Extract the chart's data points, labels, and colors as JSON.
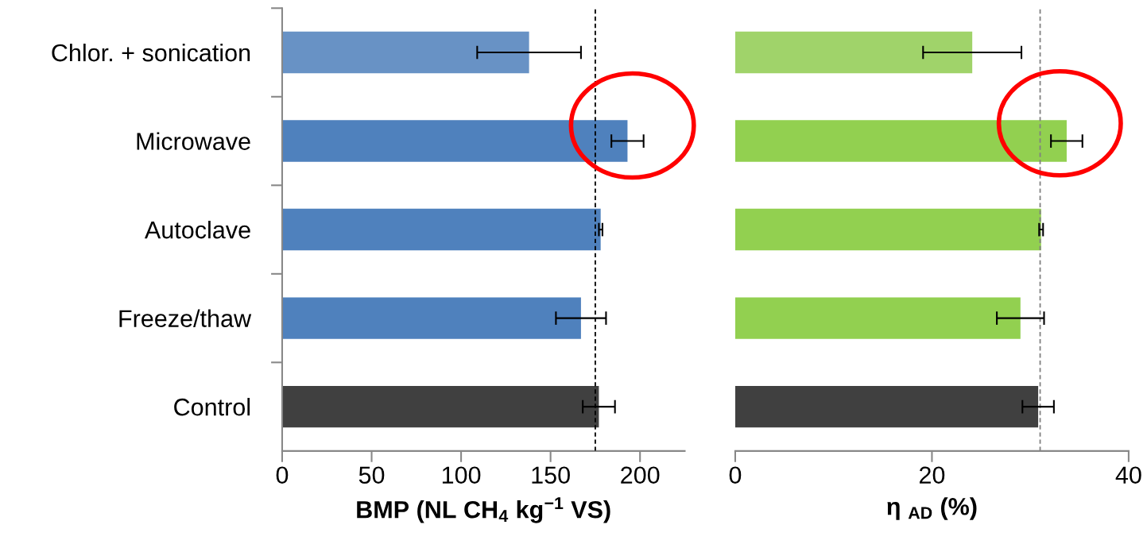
{
  "chart_data": [
    {
      "type": "bar",
      "orientation": "horizontal",
      "categories": [
        "Chlor. + sonication",
        "Microwave",
        "Autoclave",
        "Freeze/thaw",
        "Control"
      ],
      "values": [
        138,
        193,
        178,
        167,
        177
      ],
      "colors": [
        "#6892c5",
        "#4f81bd",
        "#4f81bd",
        "#4f81bd",
        "#404040"
      ],
      "errors": [
        29,
        9,
        1,
        14,
        9
      ],
      "xlabel": "BMP (NL CH$_{4}$ kg$^{−1}$ VS)",
      "xlim": [
        0,
        225
      ],
      "xticks": [
        0,
        50,
        100,
        150,
        200
      ],
      "ref_lines": [
        {
          "axis": "x",
          "value": 175,
          "color": "#000000",
          "line_style": "dashed"
        }
      ],
      "grid": false,
      "legend": false
    },
    {
      "type": "bar",
      "orientation": "horizontal",
      "categories": [
        null,
        null,
        null,
        null,
        null
      ],
      "values": [
        24.1,
        33.7,
        31.1,
        29.0,
        30.8
      ],
      "colors": [
        "#a0d36a",
        "#92d050",
        "#92d050",
        "#92d050",
        "#404040"
      ],
      "errors": [
        5,
        1.6,
        0.2,
        2.4,
        1.6
      ],
      "xlabel": "η $_{AD}$ (%)",
      "xlim": [
        0,
        40
      ],
      "xticks": [
        0,
        20,
        40
      ],
      "tick_labels": "x",
      "ref_lines": [
        {
          "axis": "x",
          "value": 31,
          "color": "#808080",
          "line_style": "dashed"
        }
      ],
      "grid": false,
      "legend": false
    }
  ]
}
